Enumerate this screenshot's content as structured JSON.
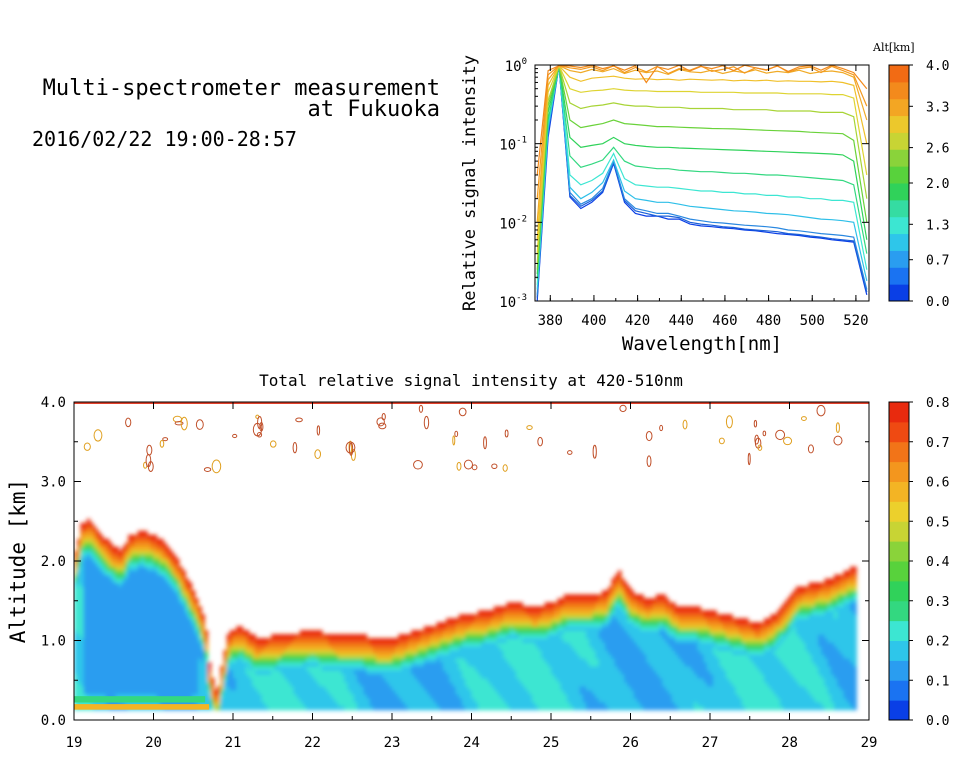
{
  "header": {
    "title_line1": "Multi-spectrometer measurement",
    "title_line2": "at Fukuoka",
    "datetime": "2016/02/22 19:00-28:57"
  },
  "chart_data": [
    {
      "type": "line",
      "xlabel": "Wavelength[nm]",
      "ylabel": "Relative signal intensity",
      "yscale": "log",
      "xlim": [
        373,
        526
      ],
      "ylim": [
        0.001,
        1
      ],
      "x_ticks": [
        "380",
        "400",
        "420",
        "440",
        "460",
        "480",
        "500",
        "520"
      ],
      "y_ticks": [
        {
          "base": "10",
          "exp": "0",
          "value": 1
        },
        {
          "base": "10",
          "exp": "-1",
          "value": 0.1
        },
        {
          "base": "10",
          "exp": "-2",
          "value": 0.01
        },
        {
          "base": "10",
          "exp": "-3",
          "value": 0.001
        }
      ],
      "colorbar": {
        "title": "Alt[km]",
        "ticks": [
          "4.0",
          "3.3",
          "2.6",
          "2.0",
          "1.3",
          "0.7",
          "0.0"
        ],
        "range": [
          0,
          4
        ],
        "colors": [
          "#0a3fe6",
          "#1a73f2",
          "#2a9df0",
          "#2ec6ea",
          "#3ce6d2",
          "#35dca2",
          "#30d25a",
          "#58d23c",
          "#8ad33a",
          "#c8d434",
          "#ecc82c",
          "#f3a623",
          "#f38a1c",
          "#f26b14"
        ]
      },
      "x": [
        374,
        379,
        384,
        389,
        394,
        399,
        404,
        409,
        414,
        419,
        424,
        429,
        434,
        439,
        444,
        449,
        454,
        459,
        464,
        469,
        474,
        479,
        484,
        489,
        494,
        499,
        504,
        509,
        514,
        519,
        525
      ],
      "series": [
        {
          "altitude_km": 0.0,
          "color": "#0a3fe6",
          "values": [
            0.001,
            0.12,
            0.98,
            0.021,
            0.015,
            0.018,
            0.024,
            0.056,
            0.018,
            0.013,
            0.012,
            0.012,
            0.011,
            0.011,
            0.0095,
            0.009,
            0.0088,
            0.0085,
            0.0083,
            0.008,
            0.0078,
            0.0075,
            0.0072,
            0.007,
            0.0068,
            0.0065,
            0.0063,
            0.006,
            0.0058,
            0.0056,
            0.0012
          ]
        },
        {
          "altitude_km": 0.3,
          "color": "#1a5fd8",
          "values": [
            0.0011,
            0.14,
            0.98,
            0.022,
            0.016,
            0.019,
            0.025,
            0.058,
            0.019,
            0.014,
            0.013,
            0.012,
            0.012,
            0.0115,
            0.01,
            0.0095,
            0.0092,
            0.0088,
            0.0086,
            0.0082,
            0.008,
            0.0078,
            0.0076,
            0.0072,
            0.007,
            0.0067,
            0.0065,
            0.0062,
            0.006,
            0.0058,
            0.0013
          ]
        },
        {
          "altitude_km": 0.6,
          "color": "#2a88e0",
          "values": [
            0.0012,
            0.15,
            0.98,
            0.024,
            0.017,
            0.02,
            0.027,
            0.06,
            0.02,
            0.015,
            0.014,
            0.013,
            0.013,
            0.012,
            0.011,
            0.0105,
            0.01,
            0.0098,
            0.0095,
            0.0092,
            0.009,
            0.0088,
            0.0085,
            0.008,
            0.0078,
            0.0075,
            0.0072,
            0.007,
            0.0068,
            0.0065,
            0.0014
          ]
        },
        {
          "altitude_km": 0.9,
          "color": "#2ebfe8",
          "values": [
            0.0014,
            0.16,
            0.98,
            0.028,
            0.02,
            0.024,
            0.032,
            0.062,
            0.025,
            0.02,
            0.019,
            0.018,
            0.018,
            0.017,
            0.016,
            0.0155,
            0.015,
            0.0145,
            0.014,
            0.0138,
            0.0135,
            0.013,
            0.0128,
            0.0125,
            0.012,
            0.0115,
            0.011,
            0.0108,
            0.0105,
            0.01,
            0.0018
          ]
        },
        {
          "altitude_km": 1.2,
          "color": "#3ce6d2",
          "values": [
            0.0016,
            0.18,
            0.98,
            0.04,
            0.03,
            0.034,
            0.042,
            0.075,
            0.036,
            0.03,
            0.029,
            0.028,
            0.028,
            0.027,
            0.026,
            0.025,
            0.025,
            0.024,
            0.024,
            0.023,
            0.023,
            0.022,
            0.022,
            0.021,
            0.021,
            0.02,
            0.02,
            0.019,
            0.019,
            0.018,
            0.0025
          ]
        },
        {
          "altitude_km": 1.5,
          "color": "#33d880",
          "values": [
            0.0019,
            0.2,
            0.98,
            0.07,
            0.05,
            0.055,
            0.062,
            0.09,
            0.06,
            0.052,
            0.05,
            0.048,
            0.048,
            0.046,
            0.045,
            0.044,
            0.044,
            0.043,
            0.042,
            0.042,
            0.041,
            0.04,
            0.04,
            0.039,
            0.038,
            0.037,
            0.036,
            0.035,
            0.034,
            0.03,
            0.004
          ]
        },
        {
          "altitude_km": 1.8,
          "color": "#30d25a",
          "values": [
            0.0022,
            0.25,
            0.98,
            0.12,
            0.09,
            0.095,
            0.1,
            0.12,
            0.1,
            0.095,
            0.092,
            0.09,
            0.09,
            0.088,
            0.087,
            0.086,
            0.085,
            0.084,
            0.083,
            0.082,
            0.081,
            0.08,
            0.079,
            0.078,
            0.077,
            0.076,
            0.075,
            0.074,
            0.072,
            0.06,
            0.006
          ]
        },
        {
          "altitude_km": 2.1,
          "color": "#6ad23a",
          "values": [
            0.0025,
            0.3,
            0.98,
            0.2,
            0.16,
            0.17,
            0.18,
            0.2,
            0.18,
            0.175,
            0.17,
            0.165,
            0.165,
            0.162,
            0.16,
            0.158,
            0.156,
            0.155,
            0.154,
            0.152,
            0.15,
            0.148,
            0.146,
            0.145,
            0.143,
            0.14,
            0.138,
            0.136,
            0.134,
            0.11,
            0.01
          ]
        },
        {
          "altitude_km": 2.4,
          "color": "#a8d436",
          "values": [
            0.003,
            0.35,
            0.98,
            0.33,
            0.28,
            0.3,
            0.31,
            0.33,
            0.31,
            0.3,
            0.3,
            0.29,
            0.29,
            0.29,
            0.28,
            0.28,
            0.28,
            0.28,
            0.27,
            0.27,
            0.27,
            0.27,
            0.26,
            0.26,
            0.26,
            0.26,
            0.25,
            0.25,
            0.25,
            0.22,
            0.02
          ]
        },
        {
          "altitude_km": 2.7,
          "color": "#ded432",
          "values": [
            0.004,
            0.45,
            0.98,
            0.5,
            0.45,
            0.47,
            0.48,
            0.5,
            0.48,
            0.47,
            0.47,
            0.46,
            0.46,
            0.46,
            0.46,
            0.45,
            0.45,
            0.45,
            0.45,
            0.44,
            0.44,
            0.44,
            0.44,
            0.43,
            0.43,
            0.43,
            0.43,
            0.42,
            0.42,
            0.38,
            0.04
          ]
        },
        {
          "altitude_km": 3.0,
          "color": "#f0c02a",
          "values": [
            0.006,
            0.55,
            0.98,
            0.7,
            0.62,
            0.68,
            0.7,
            0.72,
            0.68,
            0.66,
            0.67,
            0.65,
            0.66,
            0.64,
            0.66,
            0.65,
            0.64,
            0.65,
            0.63,
            0.64,
            0.63,
            0.64,
            0.62,
            0.63,
            0.62,
            0.62,
            0.61,
            0.62,
            0.6,
            0.55,
            0.1
          ]
        },
        {
          "altitude_km": 3.3,
          "color": "#f0aa26",
          "values": [
            0.01,
            0.65,
            0.98,
            0.85,
            0.8,
            0.88,
            0.82,
            0.9,
            0.78,
            0.86,
            0.8,
            0.84,
            0.76,
            0.88,
            0.82,
            0.8,
            0.86,
            0.78,
            0.84,
            0.8,
            0.87,
            0.79,
            0.83,
            0.8,
            0.86,
            0.78,
            0.82,
            0.84,
            0.8,
            0.7,
            0.2
          ]
        },
        {
          "altitude_km": 3.6,
          "color": "#f39a20",
          "values": [
            0.02,
            0.75,
            0.98,
            0.92,
            0.88,
            0.95,
            0.85,
            0.98,
            0.8,
            0.93,
            0.82,
            0.96,
            0.78,
            0.9,
            0.86,
            0.97,
            0.83,
            0.88,
            0.95,
            0.79,
            0.92,
            0.86,
            0.98,
            0.81,
            0.9,
            0.94,
            0.8,
            0.96,
            0.85,
            0.75,
            0.3
          ]
        },
        {
          "altitude_km": 3.9,
          "color": "#f38a1c",
          "values": [
            0.04,
            0.85,
            0.98,
            0.97,
            0.93,
            0.99,
            0.9,
            0.97,
            0.86,
            0.98,
            0.6,
            0.95,
            0.88,
            0.99,
            0.84,
            0.96,
            0.9,
            0.98,
            0.85,
            0.99,
            0.92,
            0.87,
            0.97,
            0.83,
            0.95,
            0.98,
            0.86,
            0.99,
            0.9,
            0.8,
            0.5
          ]
        }
      ]
    },
    {
      "type": "heatmap",
      "title": "Total relative signal intensity at 420-510nm",
      "ylabel": "Altitude [km]",
      "xlim": [
        19,
        29
      ],
      "ylim": [
        0,
        4
      ],
      "x_ticks": [
        "19",
        "20",
        "21",
        "22",
        "23",
        "24",
        "25",
        "26",
        "27",
        "28",
        "29"
      ],
      "y_ticks": [
        "0.0",
        "1.0",
        "2.0",
        "3.0",
        "4.0"
      ],
      "colorbar": {
        "ticks": [
          "0.8",
          "0.7",
          "0.6",
          "0.5",
          "0.4",
          "0.3",
          "0.2",
          "0.1",
          "0.0"
        ],
        "range": [
          0,
          0.8
        ],
        "colors": [
          "#0a3fe6",
          "#1a73f2",
          "#2a9df0",
          "#2ec6ea",
          "#3ce6d2",
          "#33d880",
          "#30d25a",
          "#58d23c",
          "#8ad33a",
          "#c8d434",
          "#ecd02c",
          "#f3b424",
          "#f3961e",
          "#f27418",
          "#ef4a12",
          "#e82a0e"
        ]
      },
      "cloud_base_km": {
        "time_h": [
          19.0,
          19.1,
          19.2,
          19.35,
          19.5,
          19.6,
          19.7,
          19.85,
          20.0,
          20.15,
          20.3,
          20.45,
          20.55,
          20.65,
          20.7,
          20.75,
          20.8,
          20.85,
          20.95,
          21.1,
          21.3,
          21.6,
          22.0,
          22.3,
          22.6,
          22.8,
          23.0,
          23.3,
          23.6,
          23.9,
          24.2,
          24.5,
          24.8,
          25.0,
          25.2,
          25.5,
          25.7,
          25.85,
          26.0,
          26.2,
          26.4,
          26.6,
          26.8,
          27.0,
          27.2,
          27.4,
          27.6,
          27.8,
          27.95,
          28.1,
          28.3,
          28.5,
          28.7,
          28.8
        ],
        "top_km": [
          2.0,
          2.45,
          2.5,
          2.3,
          2.15,
          2.1,
          2.3,
          2.35,
          2.3,
          2.2,
          2.0,
          1.7,
          1.5,
          1.2,
          0.7,
          0.45,
          0.3,
          0.6,
          1.1,
          1.15,
          1.0,
          1.05,
          1.1,
          1.05,
          1.05,
          1.0,
          1.0,
          1.1,
          1.2,
          1.3,
          1.35,
          1.45,
          1.4,
          1.45,
          1.55,
          1.55,
          1.6,
          1.85,
          1.6,
          1.5,
          1.55,
          1.4,
          1.4,
          1.35,
          1.3,
          1.25,
          1.2,
          1.3,
          1.45,
          1.65,
          1.7,
          1.75,
          1.85,
          1.9
        ]
      }
    }
  ]
}
